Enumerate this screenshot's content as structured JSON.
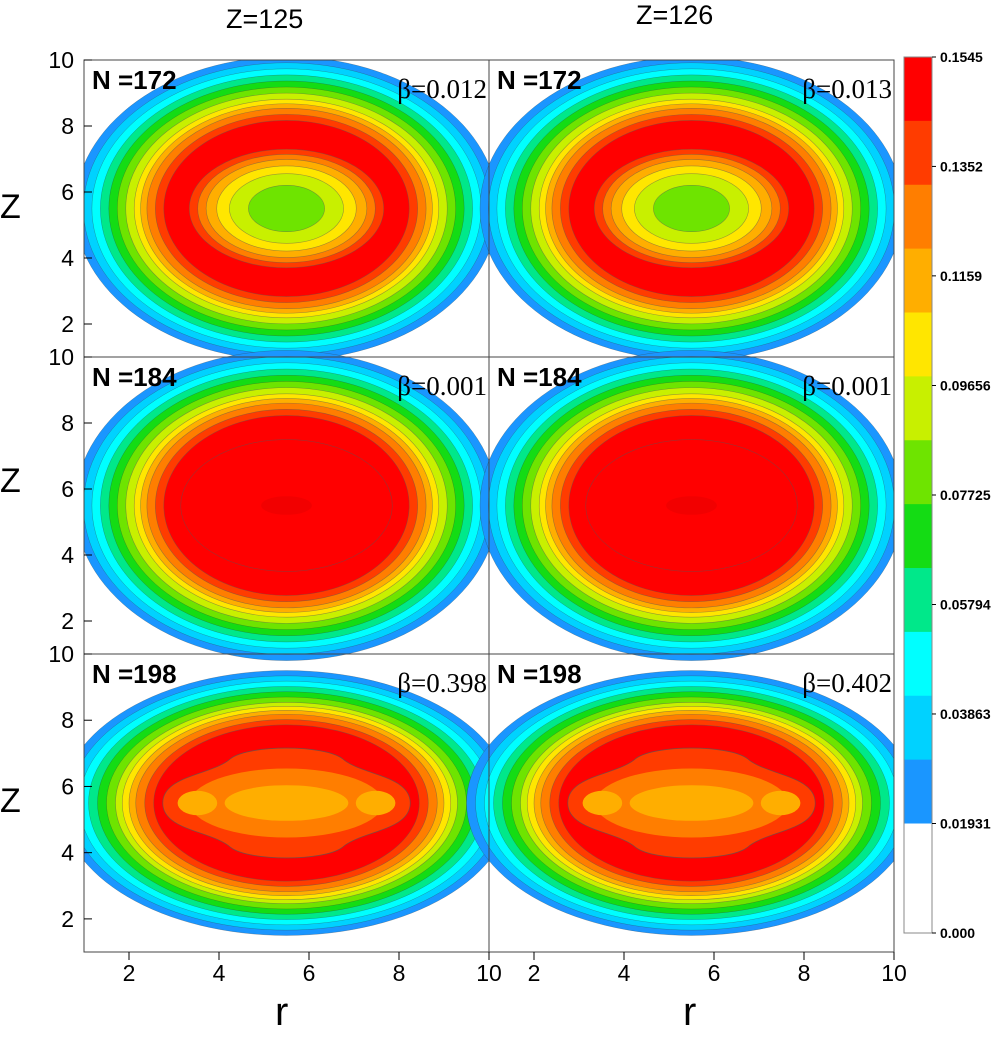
{
  "columns": [
    "Z=125",
    "Z=126"
  ],
  "axis_labels": {
    "x": "r",
    "y": "Z"
  },
  "panel_labels": [
    [
      "N =172",
      "N =172"
    ],
    [
      "N =184",
      "N =184"
    ],
    [
      "N =198",
      "N =198"
    ]
  ],
  "deformations": [
    [
      "β=0.012",
      "β=0.013"
    ],
    [
      "β=0.001",
      "β=0.001"
    ],
    [
      "β=0.398",
      "β=0.402"
    ]
  ],
  "colorbar": {
    "ticks": [
      "0.1545",
      "0.1352",
      "0.1159",
      "0.09656",
      "0.07725",
      "0.05794",
      "0.03863",
      "0.01931",
      "0.000"
    ],
    "values": [
      0.1545,
      0.1352,
      0.1159,
      0.09656,
      0.07725,
      0.05794,
      0.03863,
      0.01931,
      0.0
    ],
    "colors": [
      "#ff0000",
      "#ff3c00",
      "#ff7e00",
      "#ffae00",
      "#ffe600",
      "#c8f000",
      "#6ee400",
      "#14dc14",
      "#00e88a",
      "#00ffff",
      "#00d2ff",
      "#1a96ff",
      "#ffffff"
    ]
  },
  "chart_data": {
    "type": "heatmap",
    "title": "",
    "xlabel": "r",
    "ylabel": "Z",
    "xlim": [
      1,
      10
    ],
    "ylim": [
      1,
      10
    ],
    "x_ticks": [
      2,
      4,
      6,
      8,
      10
    ],
    "y_ticks": [
      2,
      4,
      6,
      8,
      10
    ],
    "color_range": [
      0.0,
      0.1545
    ],
    "panels": [
      {
        "column": "Z=125",
        "label": "N =172",
        "beta": "β=0.012",
        "center": [
          5.5,
          5.5
        ],
        "semi_axes": [
          4.7,
          4.6
        ],
        "max_density": 0.1545,
        "center_density": 0.108
      },
      {
        "column": "Z=126",
        "label": "N =172",
        "beta": "β=0.013",
        "center": [
          5.5,
          5.5
        ],
        "semi_axes": [
          4.7,
          4.6
        ],
        "max_density": 0.1545,
        "center_density": 0.108
      },
      {
        "column": "Z=125",
        "label": "N =184",
        "beta": "β=0.001",
        "center": [
          5.5,
          5.5
        ],
        "semi_axes": [
          4.7,
          4.7
        ],
        "max_density": 0.1545,
        "center_density": 0.1545
      },
      {
        "column": "Z=126",
        "label": "N =184",
        "beta": "β=0.001",
        "center": [
          5.5,
          5.5
        ],
        "semi_axes": [
          4.7,
          4.7
        ],
        "max_density": 0.1545,
        "center_density": 0.1545
      },
      {
        "column": "Z=125",
        "label": "N =198",
        "beta": "β=0.398",
        "center": [
          5.5,
          5.5
        ],
        "semi_axes": [
          5.0,
          4.0
        ],
        "max_density": 0.1545,
        "center_density": 0.136
      },
      {
        "column": "Z=126",
        "label": "N =198",
        "beta": "β=0.402",
        "center": [
          5.5,
          5.5
        ],
        "semi_axes": [
          5.0,
          4.0
        ],
        "max_density": 0.1545,
        "center_density": 0.136
      }
    ]
  }
}
